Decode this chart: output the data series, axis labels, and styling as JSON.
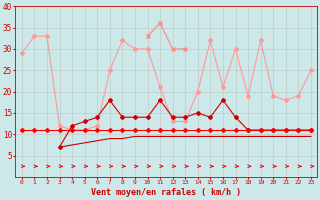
{
  "x": [
    0,
    1,
    2,
    3,
    4,
    5,
    6,
    7,
    8,
    9,
    10,
    11,
    12,
    13,
    14,
    15,
    16,
    17,
    18,
    19,
    20,
    21,
    22,
    23
  ],
  "background_color": "#cce8e8",
  "grid_color": "#bbbbbb",
  "xlabel": "Vent moyen/en rafales ( km/h )",
  "ylim": [
    0,
    40
  ],
  "yticks": [
    5,
    10,
    15,
    20,
    25,
    30,
    35,
    40
  ],
  "line_flat": {
    "y": [
      11,
      11,
      11,
      11,
      11,
      11,
      11,
      11,
      11,
      11,
      11,
      11,
      11,
      11,
      11,
      11,
      11,
      11,
      11,
      11,
      11,
      11,
      11,
      11
    ],
    "color": "#ff0000",
    "linewidth": 0.8,
    "markersize": 2.0
  },
  "line_gust_lower": {
    "y": [
      null,
      null,
      null,
      7,
      7.5,
      8,
      8.5,
      9,
      9,
      9.5,
      9.5,
      9.5,
      9.5,
      9.5,
      9.5,
      9.5,
      9.5,
      9.5,
      9.5,
      9.5,
      9.5,
      9.5,
      9.5,
      9.5
    ],
    "color": "#cc0000",
    "linewidth": 0.8
  },
  "line_gust_upper": {
    "y": [
      null,
      null,
      null,
      7,
      12,
      13,
      14,
      18,
      14,
      14,
      14,
      18,
      14,
      14,
      15,
      14,
      18,
      14,
      11,
      11,
      11,
      11,
      11,
      11
    ],
    "color": "#cc0000",
    "linewidth": 0.8,
    "markersize": 2.0
  },
  "line_max_lower": {
    "y": [
      29,
      33,
      33,
      12,
      11,
      11,
      12,
      25,
      32,
      30,
      30,
      21,
      13,
      13,
      20,
      32,
      21,
      30,
      19,
      32,
      19,
      18,
      19,
      25
    ],
    "color": "#ff9999",
    "linewidth": 0.8,
    "markersize": 2.0
  },
  "line_peak": {
    "y": [
      null,
      null,
      null,
      null,
      null,
      null,
      null,
      null,
      null,
      null,
      33,
      36,
      30,
      30,
      null,
      null,
      null,
      null,
      null,
      null,
      null,
      null,
      null,
      null
    ],
    "color": "#ff8888",
    "linewidth": 0.8,
    "markersize": 3.5
  },
  "arrow_row": {
    "y_data": 2.5,
    "color": "#ff0000"
  }
}
